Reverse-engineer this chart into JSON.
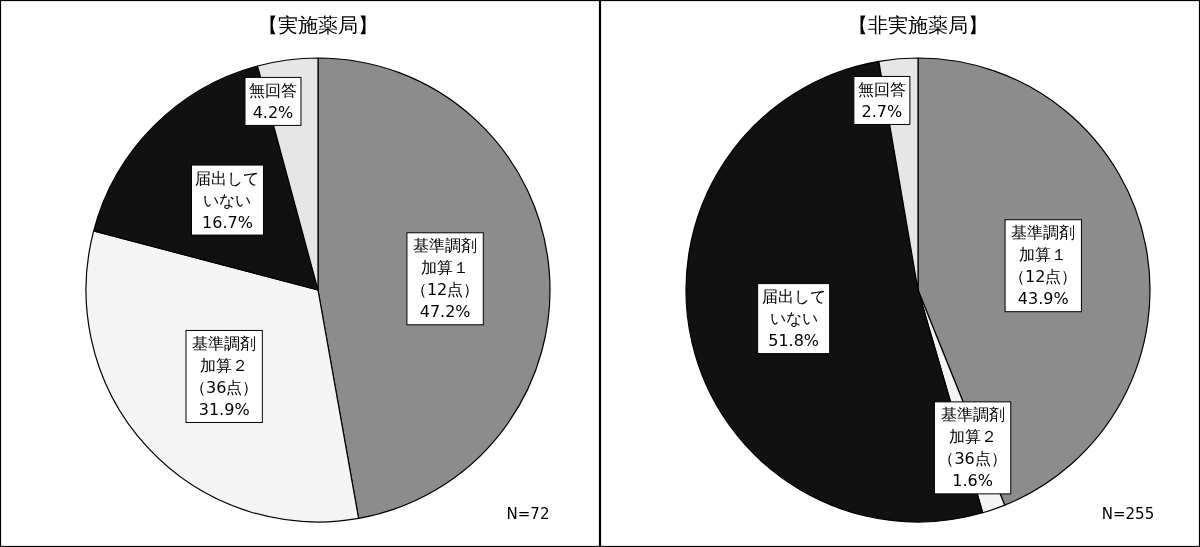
{
  "chart_data": [
    {
      "type": "pie",
      "title": "【実施薬局】",
      "categories": [
        "基準調剤加算１（12点）",
        "基準調剤加算２（36点）",
        "届出していない",
        "無回答"
      ],
      "values": [
        47.2,
        31.9,
        16.7,
        4.2
      ],
      "value_labels": [
        "47.2%",
        "31.9%",
        "16.7%",
        "4.2%"
      ],
      "colors": [
        "#8c8c8c",
        "#f4f4f4",
        "#111111",
        "#e6e6e6"
      ],
      "annotations": [
        "N=72"
      ]
    },
    {
      "type": "pie",
      "title": "【非実施薬局】",
      "categories": [
        "基準調剤加算１（12点）",
        "基準調剤加算２（36点）",
        "届出していない",
        "無回答"
      ],
      "values": [
        43.9,
        1.6,
        51.8,
        2.7
      ],
      "value_labels": [
        "43.9%",
        "1.6%",
        "51.8%",
        "2.7%"
      ],
      "colors": [
        "#8c8c8c",
        "#f4f4f4",
        "#111111",
        "#e6e6e6"
      ],
      "annotations": [
        "N=255"
      ]
    }
  ]
}
